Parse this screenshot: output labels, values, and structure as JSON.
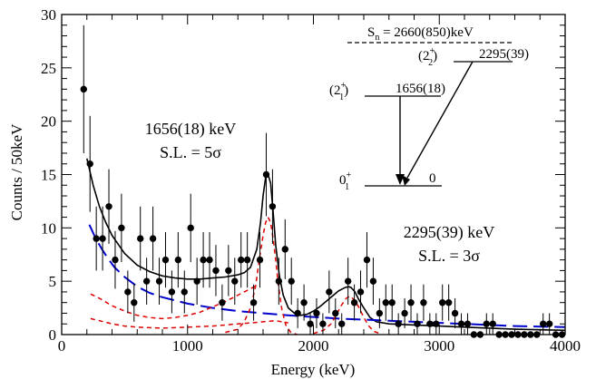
{
  "chart_data": {
    "type": "scatter",
    "xlabel": "Energy (keV)",
    "ylabel": "Counts / 50keV",
    "xlim": [
      0,
      4000
    ],
    "ylim": [
      0,
      30
    ],
    "x_ticks": [
      "0",
      "1000",
      "2000",
      "3000",
      "4000"
    ],
    "y_ticks": [
      "0",
      "5",
      "10",
      "15",
      "20",
      "25",
      "30"
    ],
    "grid": false,
    "bin_width": 50,
    "series": [
      {
        "kind": "data-points-with-errors",
        "color": "#000000",
        "points": [
          {
            "x": 175,
            "y": 23,
            "err": 6
          },
          {
            "x": 225,
            "y": 16,
            "err": 4.5
          },
          {
            "x": 275,
            "y": 9,
            "err": 3
          },
          {
            "x": 325,
            "y": 9,
            "err": 3
          },
          {
            "x": 375,
            "y": 12,
            "err": 3.5
          },
          {
            "x": 425,
            "y": 7,
            "err": 2.7
          },
          {
            "x": 475,
            "y": 10,
            "err": 3.2
          },
          {
            "x": 525,
            "y": 4,
            "err": 2
          },
          {
            "x": 575,
            "y": 3,
            "err": 1.8
          },
          {
            "x": 625,
            "y": 9,
            "err": 3
          },
          {
            "x": 675,
            "y": 5,
            "err": 2.2
          },
          {
            "x": 725,
            "y": 9,
            "err": 3
          },
          {
            "x": 775,
            "y": 5,
            "err": 2.2
          },
          {
            "x": 825,
            "y": 7,
            "err": 2.6
          },
          {
            "x": 875,
            "y": 4,
            "err": 2
          },
          {
            "x": 925,
            "y": 7,
            "err": 2.6
          },
          {
            "x": 975,
            "y": 4,
            "err": 2
          },
          {
            "x": 1025,
            "y": 10,
            "err": 3.2
          },
          {
            "x": 1075,
            "y": 5,
            "err": 2.2
          },
          {
            "x": 1125,
            "y": 7,
            "err": 2.6
          },
          {
            "x": 1175,
            "y": 7,
            "err": 2.6
          },
          {
            "x": 1225,
            "y": 6,
            "err": 2.4
          },
          {
            "x": 1275,
            "y": 3,
            "err": 1.7
          },
          {
            "x": 1325,
            "y": 6,
            "err": 2.4
          },
          {
            "x": 1375,
            "y": 5,
            "err": 2.2
          },
          {
            "x": 1425,
            "y": 7,
            "err": 2.6
          },
          {
            "x": 1475,
            "y": 7,
            "err": 2.6
          },
          {
            "x": 1525,
            "y": 3,
            "err": 1.7
          },
          {
            "x": 1575,
            "y": 7,
            "err": 2.6
          },
          {
            "x": 1625,
            "y": 15,
            "err": 3.9
          },
          {
            "x": 1675,
            "y": 12,
            "err": 3.5
          },
          {
            "x": 1725,
            "y": 5,
            "err": 2.2
          },
          {
            "x": 1775,
            "y": 8,
            "err": 2.8
          },
          {
            "x": 1825,
            "y": 5,
            "err": 2.2
          },
          {
            "x": 1875,
            "y": 2,
            "err": 1.4
          },
          {
            "x": 1925,
            "y": 3,
            "err": 1.7
          },
          {
            "x": 1975,
            "y": 1,
            "err": 1
          },
          {
            "x": 2025,
            "y": 2,
            "err": 1.4
          },
          {
            "x": 2075,
            "y": 1,
            "err": 1
          },
          {
            "x": 2125,
            "y": 4,
            "err": 2
          },
          {
            "x": 2175,
            "y": 2,
            "err": 1.4
          },
          {
            "x": 2225,
            "y": 1,
            "err": 1
          },
          {
            "x": 2275,
            "y": 5,
            "err": 2.2
          },
          {
            "x": 2325,
            "y": 3,
            "err": 1.7
          },
          {
            "x": 2375,
            "y": 4,
            "err": 2
          },
          {
            "x": 2425,
            "y": 7,
            "err": 2.6
          },
          {
            "x": 2475,
            "y": 5,
            "err": 2.2
          },
          {
            "x": 2525,
            "y": 2,
            "err": 1.4
          },
          {
            "x": 2575,
            "y": 3,
            "err": 1.7
          },
          {
            "x": 2625,
            "y": 3,
            "err": 1.7
          },
          {
            "x": 2675,
            "y": 1,
            "err": 1
          },
          {
            "x": 2725,
            "y": 2,
            "err": 1.4
          },
          {
            "x": 2775,
            "y": 3,
            "err": 1.7
          },
          {
            "x": 2825,
            "y": 1,
            "err": 1
          },
          {
            "x": 2875,
            "y": 3,
            "err": 1.7
          },
          {
            "x": 2925,
            "y": 1,
            "err": 1
          },
          {
            "x": 2975,
            "y": 1,
            "err": 1
          },
          {
            "x": 3025,
            "y": 3,
            "err": 1.7
          },
          {
            "x": 3075,
            "y": 3,
            "err": 1.7
          },
          {
            "x": 3125,
            "y": 2,
            "err": 1.4
          },
          {
            "x": 3175,
            "y": 1,
            "err": 1
          },
          {
            "x": 3225,
            "y": 1,
            "err": 1
          },
          {
            "x": 3275,
            "y": 0,
            "err": 0
          },
          {
            "x": 3325,
            "y": 0,
            "err": 0
          },
          {
            "x": 3375,
            "y": 1,
            "err": 1
          },
          {
            "x": 3425,
            "y": 1,
            "err": 1
          },
          {
            "x": 3475,
            "y": 0,
            "err": 0
          },
          {
            "x": 3525,
            "y": 0,
            "err": 0
          },
          {
            "x": 3575,
            "y": 0,
            "err": 0
          },
          {
            "x": 3625,
            "y": 0,
            "err": 0
          },
          {
            "x": 3675,
            "y": 0,
            "err": 0
          },
          {
            "x": 3725,
            "y": 0,
            "err": 0
          },
          {
            "x": 3775,
            "y": 0,
            "err": 0
          },
          {
            "x": 3825,
            "y": 1,
            "err": 1
          },
          {
            "x": 3875,
            "y": 1,
            "err": 1
          },
          {
            "x": 3925,
            "y": 0,
            "err": 0
          },
          {
            "x": 3975,
            "y": 0,
            "err": 0
          }
        ]
      },
      {
        "kind": "total-fit",
        "color": "#000000",
        "style": "solid",
        "x": [
          200,
          250,
          300,
          350,
          400,
          500,
          600,
          700,
          800,
          900,
          1000,
          1100,
          1200,
          1300,
          1400,
          1450,
          1500,
          1550,
          1580,
          1600,
          1620,
          1640,
          1660,
          1680,
          1700,
          1730,
          1760,
          1800,
          1850,
          1900,
          1950,
          2000,
          2050,
          2100,
          2150,
          2200,
          2250,
          2280,
          2300,
          2330,
          2360,
          2400,
          2450,
          2500,
          2600,
          2800,
          3000,
          3200,
          3400,
          3600,
          3800,
          4000
        ],
        "y": [
          16.5,
          14,
          12,
          10.5,
          9.3,
          7.6,
          6.5,
          5.9,
          5.5,
          5.3,
          5.2,
          5.2,
          5.3,
          5.4,
          5.6,
          5.8,
          6.3,
          8,
          10.5,
          13,
          14.7,
          15,
          14.2,
          11.5,
          8.4,
          5.5,
          3.7,
          2.5,
          2,
          1.8,
          1.9,
          2.2,
          2.6,
          3.1,
          3.6,
          4.1,
          4.4,
          4.5,
          4.4,
          4,
          3.3,
          2.5,
          1.6,
          1.2,
          1,
          0.9,
          0.8,
          0.7,
          0.6,
          0.5,
          0.45,
          0.4
        ]
      },
      {
        "kind": "background-fit",
        "color": "#0000cc",
        "style": "long-dash",
        "x": [
          220,
          270,
          320,
          370,
          420,
          500,
          600,
          700,
          800,
          900,
          1000,
          1200,
          1400,
          1600,
          1800,
          2000,
          2200,
          2400,
          2600,
          2800,
          3000,
          3200,
          3400,
          3600,
          3800,
          4000
        ],
        "y": [
          10.3,
          9,
          8,
          7.1,
          6.3,
          5.4,
          4.5,
          3.9,
          3.5,
          3.2,
          2.9,
          2.5,
          2.2,
          2,
          1.8,
          1.65,
          1.5,
          1.4,
          1.3,
          1.2,
          1.1,
          1,
          0.9,
          0.8,
          0.75,
          0.7
        ]
      },
      {
        "kind": "peak-1656",
        "color": "#dd0000",
        "style": "short-dash",
        "x": [
          1300,
          1400,
          1450,
          1500,
          1540,
          1570,
          1600,
          1620,
          1640,
          1660,
          1680,
          1700,
          1720,
          1750,
          1780,
          1820,
          1870
        ],
        "y": [
          0.2,
          0.5,
          1.2,
          2.5,
          4.5,
          7,
          9.3,
          10.5,
          11,
          10.5,
          9,
          7,
          4.8,
          2.3,
          0.9,
          0.2,
          0
        ]
      },
      {
        "kind": "peak-2295",
        "color": "#dd0000",
        "style": "short-dash",
        "x": [
          2000,
          2080,
          2140,
          2180,
          2220,
          2260,
          2290,
          2320,
          2360,
          2400,
          2440,
          2480,
          2540
        ],
        "y": [
          0.1,
          0.4,
          1,
          1.8,
          2.7,
          3.4,
          3.6,
          3.3,
          2.6,
          1.6,
          0.8,
          0.3,
          0.05
        ]
      },
      {
        "kind": "background-component-1",
        "color": "#dd0000",
        "style": "short-dash",
        "x": [
          230,
          300,
          400,
          500,
          600,
          700,
          800,
          900,
          1000,
          1100,
          1200,
          1300,
          1400,
          1500,
          1550
        ],
        "y": [
          3.8,
          3.4,
          2.7,
          2.2,
          1.8,
          1.6,
          1.5,
          1.6,
          1.8,
          2.1,
          2.6,
          3.1,
          3.7,
          4.3,
          4.6
        ]
      },
      {
        "kind": "background-component-2",
        "color": "#dd0000",
        "style": "short-dash",
        "x": [
          230,
          300,
          400,
          500,
          600,
          700,
          800,
          900,
          1000,
          1100,
          1200,
          1300,
          1400,
          1500,
          1600,
          1700,
          1800
        ],
        "y": [
          1.5,
          1.3,
          1,
          0.8,
          0.7,
          0.65,
          0.6,
          0.65,
          0.7,
          0.75,
          0.8,
          0.9,
          1,
          1.1,
          1.2,
          1.3,
          1.1
        ]
      }
    ],
    "annotations": [
      {
        "text": "1656(18) keV",
        "sub": "S.L. = 5σ"
      },
      {
        "text": "2295(39) keV",
        "sub": "S.L. = 3σ"
      }
    ],
    "level_scheme": {
      "sn_label": "S",
      "sn_sub": "n",
      "sn_value": " = 2660(850)keV",
      "level2_label": "(2",
      "level2_sup": "+",
      "level2_sub": "2",
      "level2_close": ")",
      "level2_energy": "2295(39)",
      "level1_label": "(2",
      "level1_sup": "+",
      "level1_sub": "1",
      "level1_close": ")",
      "level1_energy": "1656(18)",
      "level0_label": "0",
      "level0_sup": "+",
      "level0_sub": "1",
      "level0_energy": "0"
    }
  }
}
